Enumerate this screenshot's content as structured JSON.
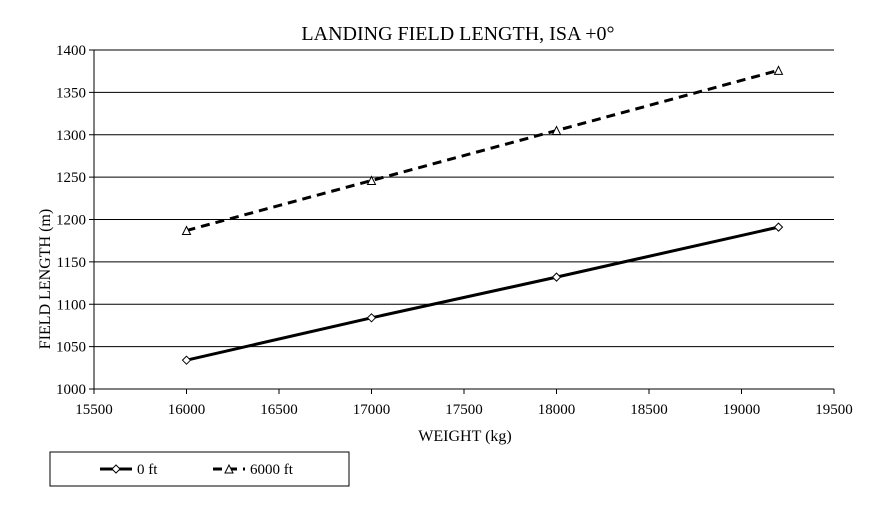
{
  "chart_data": {
    "type": "line",
    "title": "LANDING FIELD LENGTH, ISA +0°",
    "xlabel": "WEIGHT (kg)",
    "ylabel": "FIELD LENGTH (m)",
    "xlim": [
      15500,
      19500
    ],
    "ylim": [
      1000,
      1400
    ],
    "xticks": [
      15500,
      16000,
      16500,
      17000,
      17500,
      18000,
      18500,
      19000,
      19500
    ],
    "yticks": [
      1000,
      1050,
      1100,
      1150,
      1200,
      1250,
      1300,
      1350,
      1400
    ],
    "grid": "horizontal",
    "legend_position": "bottom-left",
    "series": [
      {
        "name": "0 ft",
        "style": "solid",
        "marker": "diamond",
        "x": [
          16000,
          17000,
          18000,
          19200
        ],
        "y": [
          1034,
          1084,
          1132,
          1191
        ]
      },
      {
        "name": "6000 ft",
        "style": "dashed",
        "marker": "triangle",
        "x": [
          16000,
          17000,
          18000,
          19200
        ],
        "y": [
          1187,
          1246,
          1305,
          1376
        ]
      }
    ]
  }
}
